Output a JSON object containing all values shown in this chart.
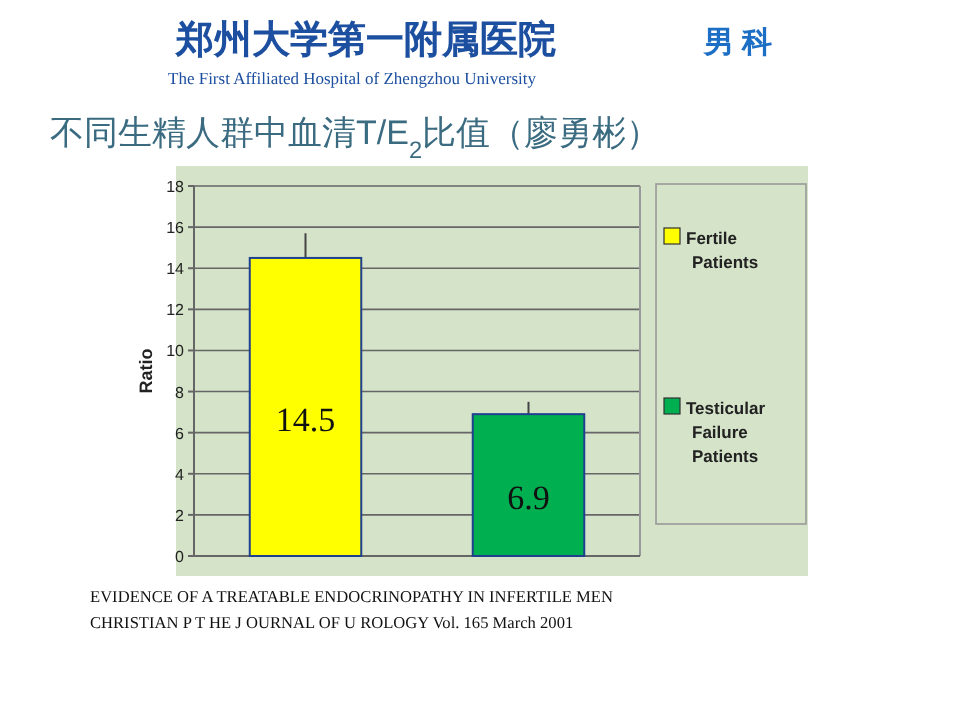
{
  "chart_data": {
    "type": "bar",
    "title": "不同生精人群中血清T/E$_{2}$比值（廖勇彬）",
    "subtitle": "郑州大学第一附属医院",
    "ylabel": "Ratio",
    "categories": [
      null,
      null
    ],
    "series": [
      {
        "name": "Fertile Patients",
        "color": "#ffff00",
        "values": [
          14.5,
          null
        ],
        "errors": [
          [
            14.5,
            15.7
          ],
          null
        ]
      },
      {
        "name": "Testicular Failure Patients",
        "color": "#00b050",
        "values": [
          null,
          6.9
        ],
        "errors": [
          null,
          [
            6.9,
            7.5
          ]
        ]
      }
    ],
    "data_labels": true,
    "ylim": [
      0,
      18
    ],
    "yticks": [
      0,
      2,
      4,
      6,
      8,
      10,
      12,
      14,
      16,
      18
    ],
    "grid": "y",
    "legend": "right",
    "annotations": [
      "The First Affiliated Hospital of Zhengzhou University",
      "男 科",
      "EVIDENCE OF A TREATABLE ENDOCRINOPATHY IN INFERTILE MEN",
      "CHRISTIAN P T HE J OURNAL OF U ROLOGY Vol. 165 March 2001"
    ]
  }
}
